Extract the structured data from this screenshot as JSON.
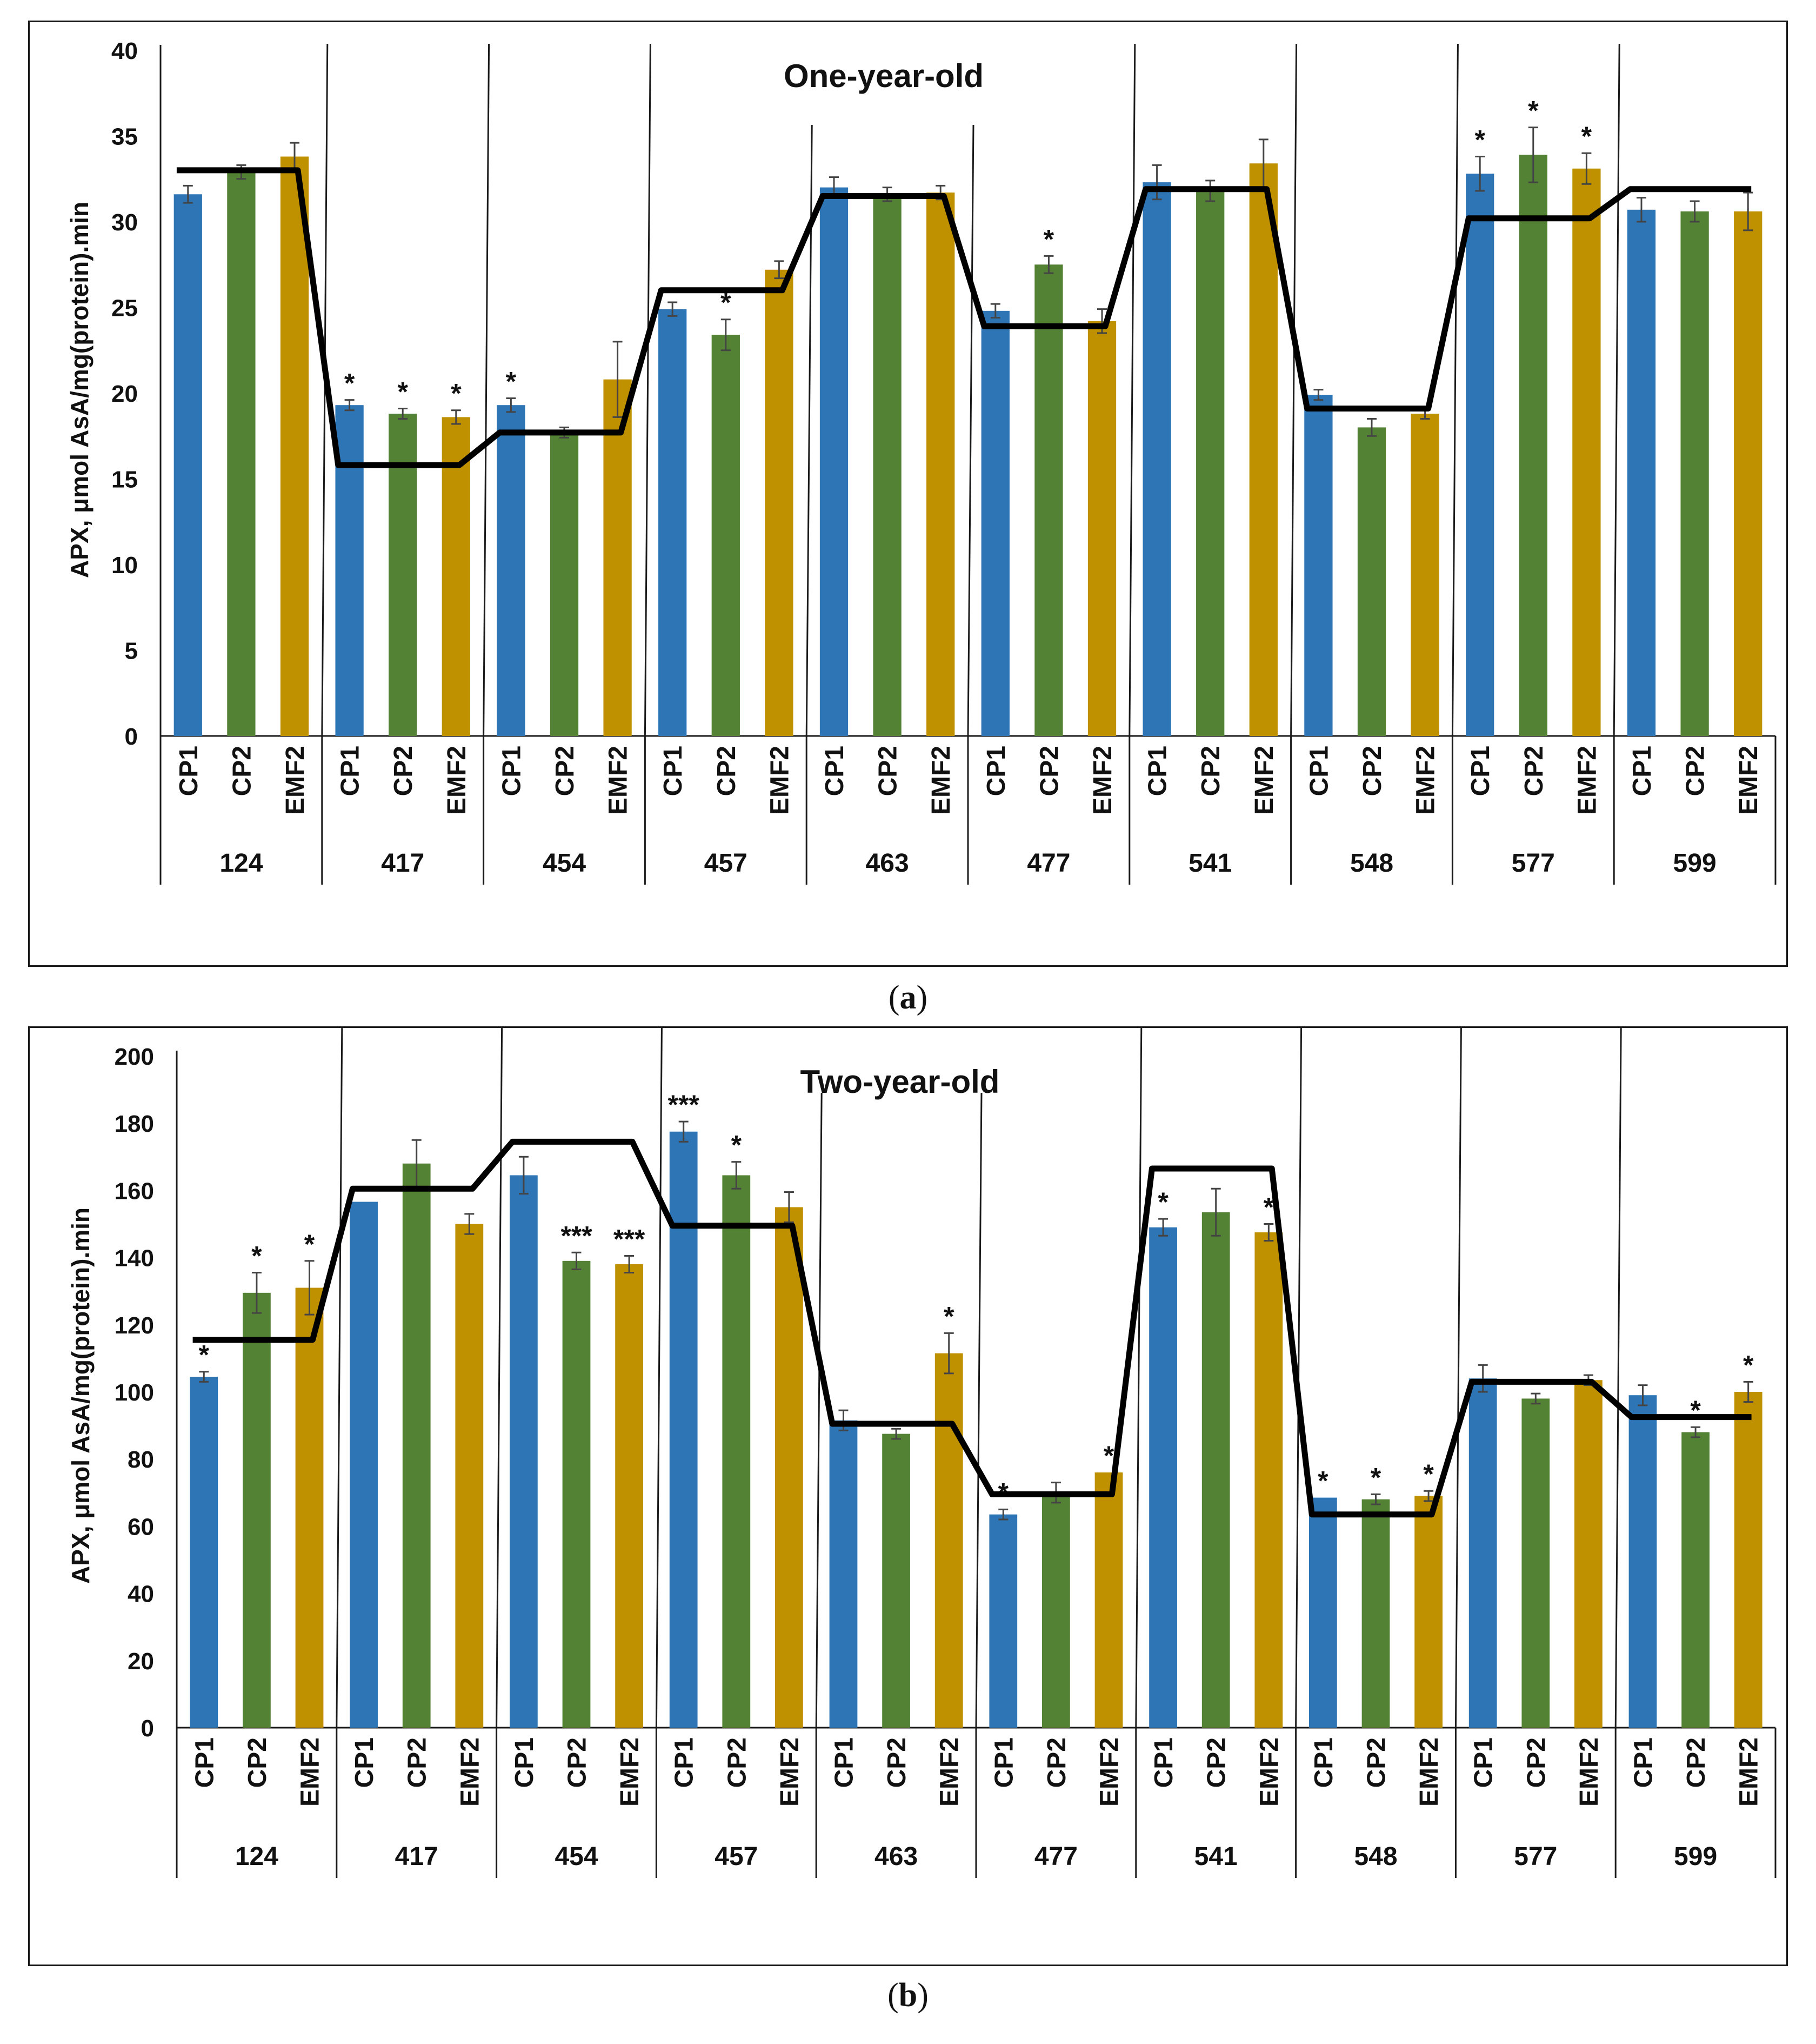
{
  "caption_a": {
    "open": "(",
    "letter": "a",
    "close": ")"
  },
  "caption_b": {
    "open": "(",
    "letter": "b",
    "close": ")"
  },
  "colors": {
    "CP1": "#2e75b6",
    "CP2": "#548235",
    "EMF2": "#bf9000",
    "line": "#000000",
    "axis": "#1a1a1a",
    "error": "#444444"
  },
  "chart_data": [
    {
      "type": "bar",
      "title": "One-year-old",
      "ylabel": "APX, μmol AsA/mg(protein).min",
      "xlabel": "",
      "ylim": [
        0,
        40
      ],
      "yticks": [
        0,
        5,
        10,
        15,
        20,
        25,
        30,
        35,
        40
      ],
      "groups": [
        "124",
        "417",
        "454",
        "457",
        "463",
        "477",
        "541",
        "548",
        "577",
        "599"
      ],
      "bar_labels": [
        "CP1",
        "CP2",
        "EMF2"
      ],
      "series": [
        {
          "name": "CP1",
          "values": [
            31.6,
            19.3,
            19.3,
            24.9,
            32.0,
            24.8,
            32.3,
            19.9,
            32.8,
            30.7
          ],
          "errors": [
            0.5,
            0.3,
            0.4,
            0.4,
            0.6,
            0.4,
            1.0,
            0.3,
            1.0,
            0.7
          ],
          "marks": [
            "",
            "*",
            "*",
            "",
            "",
            "",
            "",
            "",
            "*",
            ""
          ]
        },
        {
          "name": "CP2",
          "values": [
            32.9,
            18.8,
            17.7,
            23.4,
            31.6,
            27.5,
            31.8,
            18.0,
            33.9,
            30.6
          ],
          "errors": [
            0.4,
            0.3,
            0.3,
            0.9,
            0.4,
            0.5,
            0.6,
            0.5,
            1.6,
            0.6
          ],
          "marks": [
            "",
            "*",
            "",
            "*",
            "",
            "*",
            "",
            "",
            "*",
            ""
          ]
        },
        {
          "name": "EMF2",
          "values": [
            33.8,
            18.6,
            20.8,
            27.2,
            31.7,
            24.2,
            33.4,
            18.8,
            33.1,
            30.6
          ],
          "errors": [
            0.8,
            0.4,
            2.2,
            0.5,
            0.4,
            0.7,
            1.4,
            0.3,
            0.9,
            1.1
          ],
          "marks": [
            "",
            "*",
            "",
            "",
            "",
            "",
            "",
            "",
            "*",
            ""
          ]
        }
      ],
      "line": {
        "name": "mean",
        "values": [
          33.0,
          15.8,
          17.7,
          26.0,
          31.5,
          23.9,
          31.9,
          19.1,
          30.2,
          31.9
        ]
      }
    },
    {
      "type": "bar",
      "title": "Two-year-old",
      "ylabel": "APX, μmol AsA/mg(protein).min",
      "xlabel": "",
      "ylim": [
        0,
        200
      ],
      "yticks": [
        0,
        20,
        40,
        60,
        80,
        100,
        120,
        140,
        160,
        180,
        200
      ],
      "groups": [
        "124",
        "417",
        "454",
        "457",
        "463",
        "477",
        "541",
        "548",
        "577",
        "599"
      ],
      "bar_labels": [
        "CP1",
        "CP2",
        "EMF2"
      ],
      "series": [
        {
          "name": "CP1",
          "values": [
            104.5,
            156.6,
            164.5,
            177.5,
            91.5,
            63.5,
            149.0,
            68.5,
            104.0,
            99.0
          ],
          "errors": [
            1.5,
            0.0,
            5.5,
            3.0,
            3.0,
            1.5,
            2.5,
            0.0,
            4.0,
            3.0
          ],
          "marks": [
            "*",
            "",
            "",
            "***",
            "",
            "*",
            "*",
            "*",
            "",
            ""
          ]
        },
        {
          "name": "CP2",
          "values": [
            129.5,
            168.0,
            139.0,
            164.5,
            87.5,
            70.0,
            153.5,
            68.0,
            98.0,
            88.0
          ],
          "errors": [
            6.0,
            7.0,
            2.5,
            4.0,
            1.5,
            3.0,
            7.0,
            1.5,
            1.5,
            1.5
          ],
          "marks": [
            "*",
            "",
            "***",
            "*",
            "",
            "",
            "",
            "*",
            "",
            "*"
          ]
        },
        {
          "name": "EMF2",
          "values": [
            131.0,
            150.0,
            138.0,
            155.0,
            111.5,
            76.0,
            147.5,
            69.0,
            103.5,
            100.0
          ],
          "errors": [
            8.0,
            3.0,
            2.5,
            4.5,
            6.0,
            0.0,
            2.5,
            1.5,
            1.5,
            3.0
          ],
          "marks": [
            "*",
            "",
            "***",
            "",
            "*",
            "*",
            "*",
            "*",
            "",
            "*"
          ]
        }
      ],
      "line": {
        "name": "mean",
        "values": [
          115.5,
          160.5,
          174.5,
          149.5,
          90.5,
          69.5,
          166.5,
          63.5,
          103.0,
          92.5
        ]
      }
    }
  ]
}
